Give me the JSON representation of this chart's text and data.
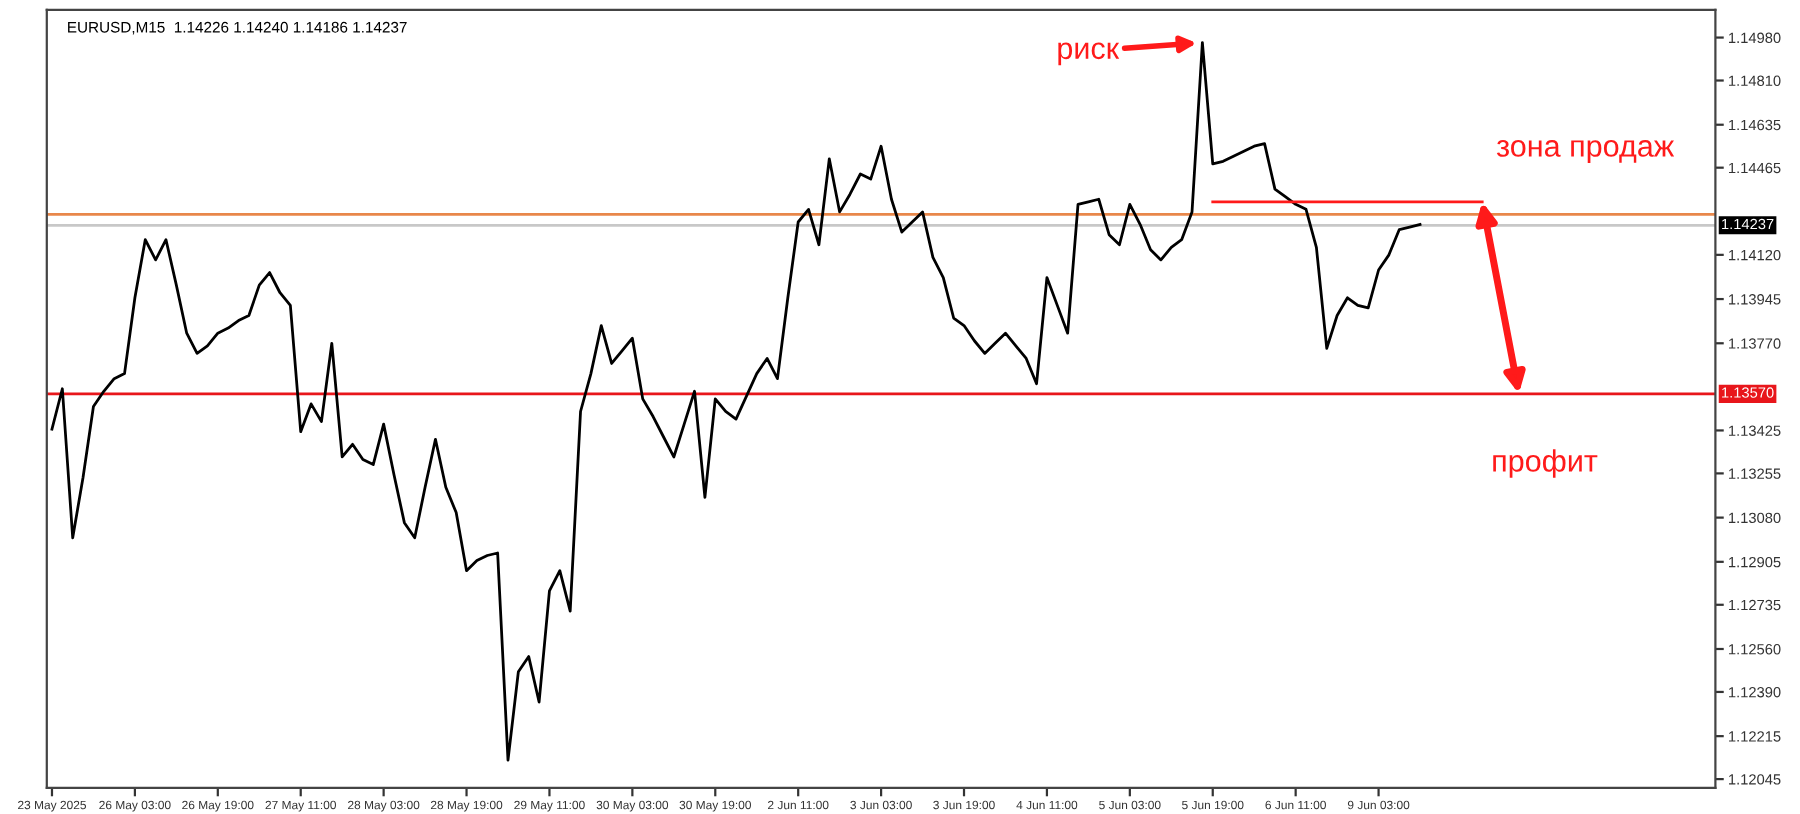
{
  "chart_data": {
    "type": "line",
    "title": "EURUSD,M15  1.14226 1.14240 1.14186 1.14237",
    "categories": [
      "23 May 2025",
      null,
      null,
      null,
      null,
      null,
      null,
      null,
      "26 May 03:00",
      null,
      null,
      null,
      null,
      null,
      null,
      null,
      "26 May 19:00",
      null,
      null,
      null,
      null,
      null,
      null,
      null,
      "27 May 11:00",
      null,
      null,
      null,
      null,
      null,
      null,
      null,
      "28 May 03:00",
      null,
      null,
      null,
      null,
      null,
      null,
      null,
      "28 May 19:00",
      null,
      null,
      null,
      null,
      null,
      null,
      null,
      "29 May 11:00",
      null,
      null,
      null,
      null,
      null,
      null,
      null,
      "30 May 03:00",
      null,
      null,
      null,
      null,
      null,
      null,
      null,
      "30 May 19:00",
      null,
      null,
      null,
      null,
      null,
      null,
      null,
      "2 Jun 11:00",
      null,
      null,
      null,
      null,
      null,
      null,
      null,
      "3 Jun 03:00",
      null,
      null,
      null,
      null,
      null,
      null,
      null,
      "3 Jun 19:00",
      null,
      null,
      null,
      null,
      null,
      null,
      null,
      "4 Jun 11:00",
      null,
      null,
      null,
      null,
      null,
      null,
      null,
      "5 Jun 03:00",
      null,
      null,
      null,
      null,
      null,
      null,
      null,
      "5 Jun 19:00",
      null,
      null,
      null,
      null,
      null,
      null,
      null,
      "6 Jun 11:00",
      null,
      null,
      null,
      null,
      null,
      null,
      null,
      "9 Jun 03:00",
      null,
      null,
      null,
      null,
      null,
      null,
      null,
      null,
      null,
      null,
      null,
      null,
      null,
      null,
      null,
      null,
      null,
      null,
      null,
      null,
      null,
      null,
      null,
      null,
      null,
      null,
      null,
      null,
      null,
      null,
      null,
      null
    ],
    "series": [
      {
        "color": "#000000",
        "values": [
          1.1343,
          1.1359,
          1.13,
          1.1324,
          1.1352,
          1.1358,
          1.1363,
          1.1365,
          1.1395,
          1.1418,
          1.141,
          1.1418,
          1.14,
          1.1381,
          1.1373,
          1.1376,
          1.1381,
          1.1383,
          1.1386,
          1.1388,
          1.14,
          1.1405,
          1.1397,
          1.1392,
          1.1342,
          1.1353,
          1.1346,
          1.1377,
          1.1332,
          1.1337,
          1.1331,
          1.1329,
          1.1345,
          1.1325,
          1.1306,
          1.13,
          1.132,
          1.1339,
          1.132,
          1.131,
          1.1287,
          1.1291,
          1.1293,
          1.1294,
          1.1212,
          1.1247,
          1.1253,
          1.1235,
          1.1279,
          1.1287,
          1.1271,
          1.135,
          1.1365,
          1.1384,
          1.1369,
          1.1374,
          1.1379,
          1.1355,
          1.1348,
          1.134,
          1.1332,
          1.1345,
          1.1358,
          1.1316,
          1.1355,
          1.135,
          1.1347,
          1.1356,
          1.1365,
          1.1371,
          1.1363,
          1.1395,
          1.1425,
          1.143,
          1.1416,
          1.145,
          1.1429,
          1.1436,
          1.1444,
          1.1442,
          1.1455,
          1.1434,
          1.1421,
          1.1425,
          1.1429,
          1.1411,
          1.1403,
          1.1387,
          1.1384,
          1.1378,
          1.1373,
          1.1377,
          1.1381,
          1.1376,
          1.1371,
          1.1361,
          1.1403,
          1.1392,
          1.1381,
          1.1432,
          1.1433,
          1.1434,
          1.142,
          1.1416,
          1.1432,
          1.1424,
          1.1414,
          1.141,
          1.1415,
          1.1418,
          1.1429,
          1.1496,
          1.1448,
          1.1449,
          1.1451,
          1.1453,
          1.1455,
          1.1456,
          1.1438,
          1.1435,
          1.1432,
          1.143,
          1.1415,
          1.1375,
          1.1388,
          1.1395,
          1.1392,
          1.1391,
          1.1406,
          1.1412,
          1.1422,
          1.1423,
          1.1424,
          null,
          null,
          null,
          null,
          null,
          null,
          null,
          null,
          null,
          null,
          null,
          null,
          null,
          null,
          null,
          null,
          null,
          null,
          null,
          null,
          null,
          null,
          null,
          null,
          null,
          null,
          null,
          null
        ]
      },
      {
        "color": "#ff1a1a",
        "values": [
          null,
          null,
          null,
          null,
          null,
          null,
          null,
          null,
          null,
          null,
          null,
          null,
          null,
          null,
          null,
          null,
          null,
          null,
          null,
          null,
          null,
          null,
          null,
          null,
          null,
          null,
          null,
          null,
          null,
          null,
          null,
          null,
          null,
          null,
          null,
          null,
          null,
          null,
          null,
          null,
          null,
          null,
          null,
          null,
          null,
          null,
          null,
          null,
          null,
          null,
          null,
          null,
          null,
          null,
          null,
          null,
          null,
          null,
          null,
          null,
          null,
          null,
          null,
          null,
          null,
          null,
          null,
          null,
          null,
          null,
          null,
          null,
          null,
          null,
          null,
          null,
          null,
          null,
          null,
          null,
          null,
          null,
          null,
          null,
          null,
          null,
          null,
          null,
          null,
          null,
          null,
          null,
          null,
          null,
          null,
          null,
          null,
          null,
          null,
          null,
          null,
          null,
          null,
          null,
          null,
          null,
          null,
          null,
          null,
          null,
          null,
          null,
          1.1433,
          1.1433,
          1.1433,
          1.1433,
          1.1433,
          1.1433,
          1.1433,
          1.1433,
          1.1433,
          1.1433,
          1.1433,
          1.1433,
          1.1433,
          1.1433,
          1.1433,
          1.1433,
          1.1433,
          1.1433,
          1.1433,
          1.1433,
          1.1433,
          1.1433,
          1.1433,
          1.1433,
          1.1433,
          1.1433,
          1.1433,
          null,
          null,
          null,
          null,
          null,
          null,
          null,
          null,
          null,
          null,
          null,
          null,
          null,
          null,
          null,
          null,
          null,
          null,
          null,
          null,
          null,
          null
        ]
      }
    ],
    "ylim": [
      1.1201,
      1.1509
    ],
    "yticks": [
      {
        "value": 1.1498,
        "label": "1.14980"
      },
      {
        "value": 1.1481,
        "label": "1.14810"
      },
      {
        "value": 1.14635,
        "label": "1.14635"
      },
      {
        "value": 1.14465,
        "label": "1.14465"
      },
      {
        "value": 1.1412,
        "label": "1.14120"
      },
      {
        "value": 1.13945,
        "label": "1.13945"
      },
      {
        "value": 1.1377,
        "label": "1.13770"
      },
      {
        "value": 1.13425,
        "label": "1.13425"
      },
      {
        "value": 1.13255,
        "label": "1.13255"
      },
      {
        "value": 1.1308,
        "label": "1.13080"
      },
      {
        "value": 1.12905,
        "label": "1.12905"
      },
      {
        "value": 1.12735,
        "label": "1.12735"
      },
      {
        "value": 1.1256,
        "label": "1.12560"
      },
      {
        "value": 1.1239,
        "label": "1.12390"
      },
      {
        "value": 1.12215,
        "label": "1.12215"
      },
      {
        "value": 1.12045,
        "label": "1.12045"
      }
    ],
    "ref_lines": [
      {
        "axis": "y",
        "value": 1.1428,
        "label": null,
        "color": "#e8874a"
      },
      {
        "axis": "y",
        "value": 1.14237,
        "label": "1.14237",
        "color": "#c8c8c8"
      },
      {
        "axis": "y",
        "value": 1.1357,
        "label": "1.13570",
        "color": "#e8161b"
      }
    ],
    "annotations": [
      "риск",
      "зона продаж",
      "профит"
    ]
  }
}
